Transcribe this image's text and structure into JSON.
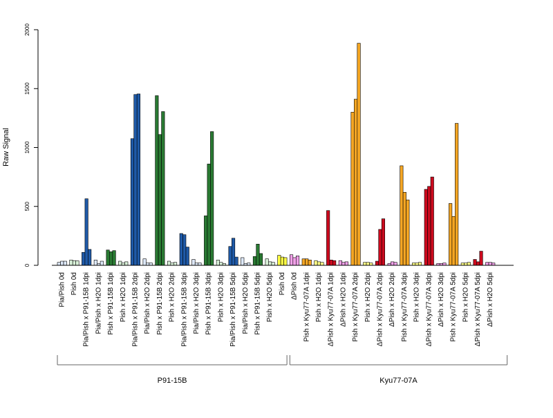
{
  "chart_data": {
    "type": "bar",
    "title": "",
    "xlabel": "",
    "ylabel": "Raw Signal",
    "ylim": [
      0,
      2000
    ],
    "yticks": [
      0,
      500,
      1000,
      1500,
      2000
    ],
    "grid": false,
    "legend": "none",
    "groups": [
      {
        "label": "P91-15B",
        "from": 0,
        "to": 18
      },
      {
        "label": "Kyu77-07A",
        "from": 19,
        "to": 36
      }
    ],
    "categories": [
      {
        "label": "Pia/Pish 0d",
        "color": "#dde8f8",
        "values": [
          25,
          35,
          35
        ]
      },
      {
        "label": "Pish 0d",
        "color": "#d8f0d8",
        "values": [
          45,
          40,
          38
        ]
      },
      {
        "label": "Pia/Pish x P91-15B 1dpi",
        "color": "#1f5aa8",
        "values": [
          110,
          565,
          135
        ]
      },
      {
        "label": "Pia/Pish x H2O 1dpi",
        "color": "#dde8f8",
        "values": [
          45,
          15,
          35
        ]
      },
      {
        "label": "Pish x P91-15B 1dpi",
        "color": "#2a7a33",
        "values": [
          130,
          115,
          125
        ]
      },
      {
        "label": "Pish x H2O 1dpi",
        "color": "#d8f0d8",
        "values": [
          35,
          20,
          30
        ]
      },
      {
        "label": "Pia/Pish x P91-15B 2dpi",
        "color": "#1f5aa8",
        "values": [
          1075,
          1450,
          1455
        ]
      },
      {
        "label": "Pia/Pish x H2O 2dpi",
        "color": "#dde8f8",
        "values": [
          55,
          20,
          20
        ]
      },
      {
        "label": "Pish x P91-15B 2dpi",
        "color": "#2a7a33",
        "values": [
          1440,
          1110,
          1305
        ]
      },
      {
        "label": "Pish x H2O 2dpi",
        "color": "#d8f0d8",
        "values": [
          35,
          20,
          25
        ]
      },
      {
        "label": "Pia/Pish x P91-15B 3dpi",
        "color": "#1f5aa8",
        "values": [
          270,
          260,
          155
        ]
      },
      {
        "label": "Pia/Pish x H2O 3dpi",
        "color": "#dde8f8",
        "values": [
          50,
          20,
          20
        ]
      },
      {
        "label": "Pish x P91-15B 3dpi",
        "color": "#2a7a33",
        "values": [
          420,
          860,
          1135
        ]
      },
      {
        "label": "Pish x H2O 3dpi",
        "color": "#d8f0d8",
        "values": [
          45,
          25,
          15
        ]
      },
      {
        "label": "Pia/Pish x P91-15B 5dpi",
        "color": "#1f5aa8",
        "values": [
          160,
          230,
          70
        ]
      },
      {
        "label": "Pia/Pish x H2O 5dpi",
        "color": "#dde8f8",
        "values": [
          65,
          15,
          20
        ]
      },
      {
        "label": "Pish x P91-15B 5dpi",
        "color": "#2a7a33",
        "values": [
          75,
          180,
          100
        ]
      },
      {
        "label": "Pish x H2O 5dpi",
        "color": "#d8f0d8",
        "values": [
          55,
          30,
          25
        ]
      },
      {
        "label": "Pish 0d",
        "color": "#ffff44",
        "values": [
          85,
          70,
          65
        ]
      },
      {
        "label": "ΔPish 0d",
        "color": "#f0a0e8",
        "values": [
          90,
          65,
          80
        ]
      },
      {
        "label": "Pish x Kyu77-07A 1dpi",
        "color": "#f5a623",
        "values": [
          55,
          55,
          45
        ]
      },
      {
        "label": "Pish x H2O 1dpi",
        "color": "#ffff88",
        "values": [
          40,
          30,
          25
        ]
      },
      {
        "label": "ΔPish x Kyu77-07A 1dpi",
        "color": "#cc0a1e",
        "values": [
          465,
          45,
          40
        ]
      },
      {
        "label": "ΔPish x H2O 1dpi",
        "color": "#f0a0e8",
        "values": [
          40,
          25,
          30
        ]
      },
      {
        "label": "Pish x Kyu77-07A 2dpi",
        "color": "#f5a623",
        "values": [
          1300,
          1410,
          1885
        ]
      },
      {
        "label": "Pish x H2O 2dpi",
        "color": "#ffff88",
        "values": [
          25,
          25,
          20
        ]
      },
      {
        "label": "ΔPish x Kyu77-07A 2dpi",
        "color": "#cc0a1e",
        "values": [
          35,
          305,
          395
        ]
      },
      {
        "label": "ΔPish x H2O 2dpi",
        "color": "#f0a0e8",
        "values": [
          15,
          30,
          25
        ]
      },
      {
        "label": "Pish x Kyu77-07A 3dpi",
        "color": "#f5a623",
        "values": [
          845,
          620,
          555
        ]
      },
      {
        "label": "Pish x H2O 3dpi",
        "color": "#ffff88",
        "values": [
          20,
          20,
          25
        ]
      },
      {
        "label": "ΔPish x Kyu77-07A 3dpi",
        "color": "#cc0a1e",
        "values": [
          645,
          670,
          750
        ]
      },
      {
        "label": "ΔPish x H2O 3dpi",
        "color": "#f0a0e8",
        "values": [
          15,
          15,
          20
        ]
      },
      {
        "label": "Pish x Kyu77-07A 5dpi",
        "color": "#f5a623",
        "values": [
          525,
          415,
          1205
        ]
      },
      {
        "label": "Pish x H2O 5dpi",
        "color": "#ffff88",
        "values": [
          20,
          20,
          25
        ]
      },
      {
        "label": "ΔPish x Kyu77-07A 5dpi",
        "color": "#cc0a1e",
        "values": [
          50,
          30,
          120
        ]
      },
      {
        "label": "ΔPish x H2O 5dpi",
        "color": "#f0a0e8",
        "values": [
          25,
          25,
          20
        ]
      }
    ]
  }
}
